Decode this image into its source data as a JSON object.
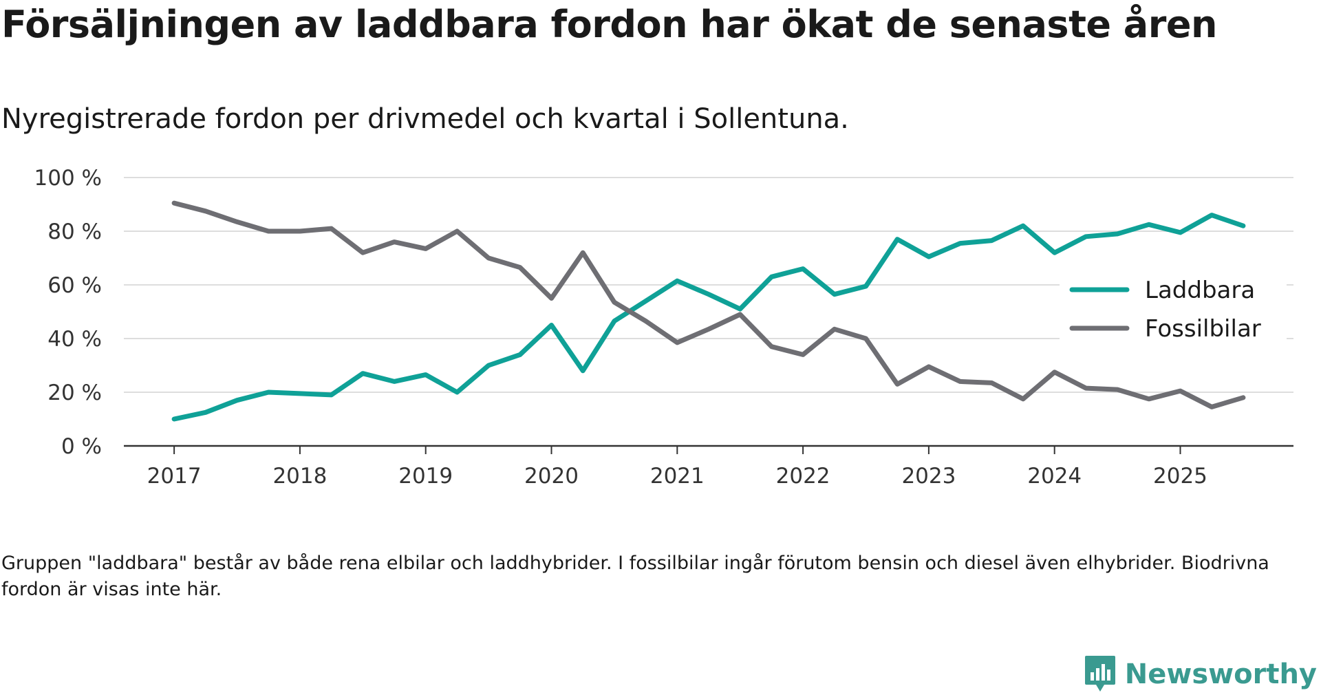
{
  "title": "Försäljningen av laddbara fordon har ökat de senaste åren",
  "subtitle": "Nyregistrerade fordon per drivmedel och kvartal i Sollentuna.",
  "note": "Gruppen \"laddbara\" består av både rena elbilar och laddhybrider. I fossilbilar ingår förutom bensin och diesel även elhybrider. Biodrivna fordon är visas inte här.",
  "brand": {
    "name": "Newsworthy",
    "icon": "newsworthy-logo-icon",
    "color": "#3a9a90"
  },
  "chart_data": {
    "type": "line",
    "x": [
      2017.0,
      2017.25,
      2017.5,
      2017.75,
      2018.0,
      2018.25,
      2018.5,
      2018.75,
      2019.0,
      2019.25,
      2019.5,
      2019.75,
      2020.0,
      2020.25,
      2020.5,
      2020.75,
      2021.0,
      2021.25,
      2021.5,
      2021.75,
      2022.0,
      2022.25,
      2022.5,
      2022.75,
      2023.0,
      2023.25,
      2023.5,
      2023.75,
      2024.0,
      2024.25,
      2024.5,
      2024.75,
      2025.0,
      2025.25,
      2025.5
    ],
    "series": [
      {
        "name": "Laddbara",
        "color": "#0fa197",
        "values": [
          10,
          12.5,
          17,
          20,
          19.5,
          19,
          27,
          24,
          26.5,
          20,
          30,
          34,
          45,
          28,
          46.5,
          54,
          61.5,
          56.5,
          51,
          63,
          66,
          56.5,
          59.5,
          77,
          70.5,
          75.5,
          76.5,
          82,
          72,
          78,
          79,
          82.5,
          79.5,
          86,
          82
        ]
      },
      {
        "name": "Fossilbilar",
        "color": "#6e6e73",
        "values": [
          90.5,
          87.5,
          83.5,
          80,
          80,
          81,
          72,
          76,
          73.5,
          80,
          70,
          66.5,
          55,
          72,
          53.5,
          46.5,
          38.5,
          43.5,
          49,
          37,
          34,
          43.5,
          40,
          23,
          29.5,
          24,
          23.5,
          17.5,
          27.5,
          21.5,
          21,
          17.5,
          20.5,
          14.5,
          18
        ]
      }
    ],
    "xlim": [
      2016.6,
      2025.9
    ],
    "ylim": [
      0,
      100
    ],
    "y_ticks": [
      0,
      20,
      40,
      60,
      80,
      100
    ],
    "y_tick_labels": [
      "0 %",
      "20 %",
      "40 %",
      "60 %",
      "80 %",
      "100 %"
    ],
    "x_ticks": [
      2017,
      2018,
      2019,
      2020,
      2021,
      2022,
      2023,
      2024,
      2025
    ],
    "x_tick_labels": [
      "2017",
      "2018",
      "2019",
      "2020",
      "2021",
      "2022",
      "2023",
      "2024",
      "2025"
    ],
    "xlabel": "",
    "ylabel": "",
    "grid": true,
    "legend_position": "right"
  }
}
